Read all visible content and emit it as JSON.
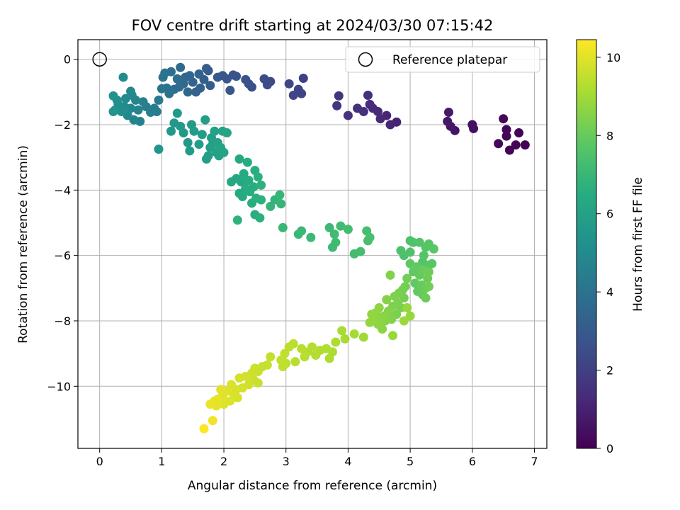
{
  "chart_data": {
    "type": "scatter",
    "title": "FOV centre drift starting at 2024/03/30 07:15:42",
    "xlabel": "Angular distance from reference (arcmin)",
    "ylabel": "Rotation from reference (arcmin)",
    "xlim": [
      -0.35,
      7.2
    ],
    "ylim": [
      -11.9,
      0.6
    ],
    "xticks": [
      0,
      1,
      2,
      3,
      4,
      5,
      6,
      7
    ],
    "yticks": [
      0,
      -2,
      -4,
      -6,
      -8,
      -10
    ],
    "grid": true,
    "legend": {
      "label": "Reference platepar",
      "placement": "top-right"
    },
    "reference_point": {
      "x": 0,
      "y": 0
    },
    "colorbar": {
      "label": "Hours from first FF file",
      "colormap": "viridis",
      "min": 0,
      "max": 10.45,
      "ticks": [
        0,
        2,
        4,
        6,
        8,
        10
      ]
    },
    "colors": {
      "marker_edge": "#000000",
      "grid": "#b0b0b0"
    },
    "points": [
      {
        "x": 6.85,
        "y": -2.62,
        "t": 0.05
      },
      {
        "x": 6.75,
        "y": -2.25,
        "t": 0.08
      },
      {
        "x": 6.7,
        "y": -2.62,
        "t": 0.1
      },
      {
        "x": 6.6,
        "y": -2.78,
        "t": 0.12
      },
      {
        "x": 6.55,
        "y": -2.35,
        "t": 0.14
      },
      {
        "x": 6.55,
        "y": -2.15,
        "t": 0.16
      },
      {
        "x": 6.5,
        "y": -1.82,
        "t": 0.18
      },
      {
        "x": 6.42,
        "y": -2.58,
        "t": 0.2
      },
      {
        "x": 6.02,
        "y": -2.12,
        "t": 0.45
      },
      {
        "x": 6.0,
        "y": -2.0,
        "t": 0.5
      },
      {
        "x": 5.72,
        "y": -2.18,
        "t": 0.6
      },
      {
        "x": 5.65,
        "y": -2.05,
        "t": 0.65
      },
      {
        "x": 5.6,
        "y": -1.9,
        "t": 0.7
      },
      {
        "x": 5.62,
        "y": -1.62,
        "t": 0.75
      },
      {
        "x": 4.78,
        "y": -1.92,
        "t": 1.05
      },
      {
        "x": 4.68,
        "y": -2.0,
        "t": 1.1
      },
      {
        "x": 4.62,
        "y": -1.72,
        "t": 1.15
      },
      {
        "x": 4.52,
        "y": -1.82,
        "t": 1.2
      },
      {
        "x": 4.48,
        "y": -1.6,
        "t": 1.25
      },
      {
        "x": 4.4,
        "y": -1.5,
        "t": 1.3
      },
      {
        "x": 4.35,
        "y": -1.38,
        "t": 1.35
      },
      {
        "x": 4.32,
        "y": -1.1,
        "t": 1.4
      },
      {
        "x": 4.25,
        "y": -1.6,
        "t": 1.45
      },
      {
        "x": 4.15,
        "y": -1.5,
        "t": 1.5
      },
      {
        "x": 4.0,
        "y": -1.72,
        "t": 1.55
      },
      {
        "x": 3.85,
        "y": -1.12,
        "t": 1.6
      },
      {
        "x": 3.82,
        "y": -1.42,
        "t": 1.65
      },
      {
        "x": 3.28,
        "y": -0.58,
        "t": 2.05
      },
      {
        "x": 3.25,
        "y": -1.05,
        "t": 2.1
      },
      {
        "x": 3.2,
        "y": -0.92,
        "t": 2.15
      },
      {
        "x": 3.12,
        "y": -1.1,
        "t": 2.2
      },
      {
        "x": 3.05,
        "y": -0.75,
        "t": 2.25
      },
      {
        "x": 2.75,
        "y": -0.68,
        "t": 2.35
      },
      {
        "x": 2.7,
        "y": -0.78,
        "t": 2.4
      },
      {
        "x": 2.65,
        "y": -0.6,
        "t": 2.45
      },
      {
        "x": 2.45,
        "y": -0.85,
        "t": 2.55
      },
      {
        "x": 2.4,
        "y": -0.75,
        "t": 2.6
      },
      {
        "x": 2.35,
        "y": -0.62,
        "t": 2.65
      },
      {
        "x": 2.2,
        "y": -0.52,
        "t": 2.7
      },
      {
        "x": 2.15,
        "y": -0.48,
        "t": 2.75
      },
      {
        "x": 2.1,
        "y": -0.95,
        "t": 2.8
      },
      {
        "x": 2.05,
        "y": -0.6,
        "t": 2.85
      },
      {
        "x": 1.98,
        "y": -0.5,
        "t": 2.9
      },
      {
        "x": 1.9,
        "y": -0.55,
        "t": 2.95
      },
      {
        "x": 1.78,
        "y": -0.8,
        "t": 3.05
      },
      {
        "x": 1.75,
        "y": -0.35,
        "t": 3.1
      },
      {
        "x": 1.72,
        "y": -0.28,
        "t": 3.15
      },
      {
        "x": 1.68,
        "y": -0.62,
        "t": 3.2
      },
      {
        "x": 1.62,
        "y": -0.88,
        "t": 3.25
      },
      {
        "x": 1.6,
        "y": -0.45,
        "t": 3.3
      },
      {
        "x": 1.55,
        "y": -1.0,
        "t": 3.35
      },
      {
        "x": 1.5,
        "y": -0.7,
        "t": 3.4
      },
      {
        "x": 1.45,
        "y": -0.5,
        "t": 3.45
      },
      {
        "x": 1.42,
        "y": -1.0,
        "t": 3.5
      },
      {
        "x": 1.38,
        "y": -0.55,
        "t": 3.55
      },
      {
        "x": 1.35,
        "y": -0.75,
        "t": 3.6
      },
      {
        "x": 1.3,
        "y": -0.25,
        "t": 3.65
      },
      {
        "x": 1.28,
        "y": -0.85,
        "t": 3.7
      },
      {
        "x": 1.25,
        "y": -0.6,
        "t": 3.75
      },
      {
        "x": 1.2,
        "y": -0.92,
        "t": 3.8
      },
      {
        "x": 1.15,
        "y": -0.38,
        "t": 3.85
      },
      {
        "x": 1.12,
        "y": -1.05,
        "t": 3.9
      },
      {
        "x": 1.08,
        "y": -0.88,
        "t": 3.95
      },
      {
        "x": 1.05,
        "y": -0.42,
        "t": 4.0
      },
      {
        "x": 1.02,
        "y": -0.55,
        "t": 4.05
      },
      {
        "x": 1.0,
        "y": -0.9,
        "t": 4.1
      },
      {
        "x": 0.95,
        "y": -1.25,
        "t": 4.3
      },
      {
        "x": 0.92,
        "y": -1.6,
        "t": 4.35
      },
      {
        "x": 0.88,
        "y": -1.5,
        "t": 4.4
      },
      {
        "x": 0.82,
        "y": -1.62,
        "t": 4.45
      },
      {
        "x": 0.75,
        "y": -1.45,
        "t": 4.5
      },
      {
        "x": 0.7,
        "y": -1.3,
        "t": 4.55
      },
      {
        "x": 0.65,
        "y": -1.9,
        "t": 4.6
      },
      {
        "x": 0.62,
        "y": -1.55,
        "t": 4.65
      },
      {
        "x": 0.58,
        "y": -1.25,
        "t": 4.7
      },
      {
        "x": 0.55,
        "y": -1.85,
        "t": 4.75
      },
      {
        "x": 0.52,
        "y": -1.1,
        "t": 4.8
      },
      {
        "x": 0.5,
        "y": -1.5,
        "t": 4.85
      },
      {
        "x": 0.5,
        "y": -0.98,
        "t": 4.9
      },
      {
        "x": 0.45,
        "y": -1.72,
        "t": 4.95
      },
      {
        "x": 0.42,
        "y": -1.2,
        "t": 5.0
      },
      {
        "x": 0.4,
        "y": -1.45,
        "t": 5.05
      },
      {
        "x": 0.38,
        "y": -0.55,
        "t": 5.1
      },
      {
        "x": 0.35,
        "y": -1.6,
        "t": 5.15
      },
      {
        "x": 0.3,
        "y": -1.38,
        "t": 5.2
      },
      {
        "x": 0.28,
        "y": -1.25,
        "t": 5.25
      },
      {
        "x": 0.25,
        "y": -1.55,
        "t": 5.3
      },
      {
        "x": 0.22,
        "y": -1.12,
        "t": 5.35
      },
      {
        "x": 0.22,
        "y": -1.6,
        "t": 5.4
      },
      {
        "x": 0.95,
        "y": -2.75,
        "t": 5.5
      },
      {
        "x": 1.15,
        "y": -2.2,
        "t": 5.55
      },
      {
        "x": 1.2,
        "y": -1.95,
        "t": 5.58
      },
      {
        "x": 1.25,
        "y": -1.65,
        "t": 5.6
      },
      {
        "x": 1.3,
        "y": -2.05,
        "t": 5.62
      },
      {
        "x": 1.35,
        "y": -2.25,
        "t": 5.65
      },
      {
        "x": 1.42,
        "y": -2.55,
        "t": 5.68
      },
      {
        "x": 1.45,
        "y": -2.8,
        "t": 5.7
      },
      {
        "x": 1.48,
        "y": -2.0,
        "t": 5.72
      },
      {
        "x": 1.52,
        "y": -2.2,
        "t": 5.75
      },
      {
        "x": 1.6,
        "y": -2.6,
        "t": 5.78
      },
      {
        "x": 1.65,
        "y": -2.3,
        "t": 5.8
      },
      {
        "x": 1.7,
        "y": -1.85,
        "t": 5.82
      },
      {
        "x": 1.72,
        "y": -3.05,
        "t": 5.85
      },
      {
        "x": 1.75,
        "y": -2.95,
        "t": 5.88
      },
      {
        "x": 1.78,
        "y": -2.7,
        "t": 5.9
      },
      {
        "x": 1.8,
        "y": -2.4,
        "t": 5.92
      },
      {
        "x": 1.82,
        "y": -2.6,
        "t": 5.95
      },
      {
        "x": 1.85,
        "y": -2.2,
        "t": 5.98
      },
      {
        "x": 1.88,
        "y": -2.85,
        "t": 6.0
      },
      {
        "x": 1.9,
        "y": -2.55,
        "t": 6.02
      },
      {
        "x": 1.92,
        "y": -2.95,
        "t": 6.05
      },
      {
        "x": 1.95,
        "y": -2.7,
        "t": 6.08
      },
      {
        "x": 1.98,
        "y": -2.2,
        "t": 6.1
      },
      {
        "x": 2.0,
        "y": -2.85,
        "t": 6.12
      },
      {
        "x": 2.05,
        "y": -2.25,
        "t": 6.15
      },
      {
        "x": 2.12,
        "y": -3.75,
        "t": 6.25
      },
      {
        "x": 2.2,
        "y": -3.65,
        "t": 6.28
      },
      {
        "x": 2.25,
        "y": -4.1,
        "t": 6.3
      },
      {
        "x": 2.25,
        "y": -3.05,
        "t": 6.32
      },
      {
        "x": 2.28,
        "y": -3.75,
        "t": 6.35
      },
      {
        "x": 2.3,
        "y": -4.2,
        "t": 6.38
      },
      {
        "x": 2.32,
        "y": -3.5,
        "t": 6.4
      },
      {
        "x": 2.35,
        "y": -3.95,
        "t": 6.42
      },
      {
        "x": 2.38,
        "y": -3.15,
        "t": 6.45
      },
      {
        "x": 2.4,
        "y": -3.7,
        "t": 6.48
      },
      {
        "x": 2.42,
        "y": -4.05,
        "t": 6.5
      },
      {
        "x": 2.45,
        "y": -4.4,
        "t": 6.52
      },
      {
        "x": 2.48,
        "y": -3.9,
        "t": 6.55
      },
      {
        "x": 2.5,
        "y": -3.4,
        "t": 6.58
      },
      {
        "x": 2.5,
        "y": -4.75,
        "t": 6.6
      },
      {
        "x": 2.52,
        "y": -4.25,
        "t": 6.62
      },
      {
        "x": 2.55,
        "y": -3.6,
        "t": 6.65
      },
      {
        "x": 2.58,
        "y": -4.85,
        "t": 6.68
      },
      {
        "x": 2.6,
        "y": -4.3,
        "t": 6.7
      },
      {
        "x": 2.6,
        "y": -3.85,
        "t": 6.72
      },
      {
        "x": 2.22,
        "y": -4.92,
        "t": 6.75
      },
      {
        "x": 2.75,
        "y": -4.5,
        "t": 6.85
      },
      {
        "x": 2.82,
        "y": -4.3,
        "t": 6.88
      },
      {
        "x": 2.9,
        "y": -4.15,
        "t": 6.9
      },
      {
        "x": 2.92,
        "y": -4.42,
        "t": 6.92
      },
      {
        "x": 2.95,
        "y": -5.15,
        "t": 6.95
      },
      {
        "x": 3.2,
        "y": -5.35,
        "t": 7.0
      },
      {
        "x": 3.25,
        "y": -5.25,
        "t": 7.02
      },
      {
        "x": 3.4,
        "y": -5.45,
        "t": 7.05
      },
      {
        "x": 3.7,
        "y": -5.15,
        "t": 7.1
      },
      {
        "x": 3.75,
        "y": -5.75,
        "t": 7.12
      },
      {
        "x": 3.8,
        "y": -5.6,
        "t": 7.15
      },
      {
        "x": 3.78,
        "y": -5.35,
        "t": 7.18
      },
      {
        "x": 3.88,
        "y": -5.1,
        "t": 7.2
      },
      {
        "x": 4.0,
        "y": -5.2,
        "t": 7.22
      },
      {
        "x": 4.1,
        "y": -5.95,
        "t": 7.25
      },
      {
        "x": 4.2,
        "y": -5.88,
        "t": 7.28
      },
      {
        "x": 4.3,
        "y": -5.25,
        "t": 7.3
      },
      {
        "x": 4.32,
        "y": -5.55,
        "t": 7.32
      },
      {
        "x": 4.35,
        "y": -5.45,
        "t": 7.35
      },
      {
        "x": 4.85,
        "y": -5.85,
        "t": 7.45
      },
      {
        "x": 4.9,
        "y": -6.0,
        "t": 7.48
      },
      {
        "x": 5.0,
        "y": -5.55,
        "t": 7.5
      },
      {
        "x": 5.0,
        "y": -5.9,
        "t": 7.52
      },
      {
        "x": 5.05,
        "y": -5.6,
        "t": 7.55
      },
      {
        "x": 5.15,
        "y": -5.6,
        "t": 7.58
      },
      {
        "x": 5.2,
        "y": -6.2,
        "t": 7.6
      },
      {
        "x": 5.22,
        "y": -6.0,
        "t": 7.62
      },
      {
        "x": 5.25,
        "y": -5.75,
        "t": 7.65
      },
      {
        "x": 5.28,
        "y": -6.3,
        "t": 7.68
      },
      {
        "x": 5.3,
        "y": -5.65,
        "t": 7.7
      },
      {
        "x": 5.35,
        "y": -6.25,
        "t": 7.72
      },
      {
        "x": 5.38,
        "y": -5.8,
        "t": 7.75
      },
      {
        "x": 5.0,
        "y": -6.25,
        "t": 7.85
      },
      {
        "x": 5.05,
        "y": -6.5,
        "t": 7.88
      },
      {
        "x": 5.08,
        "y": -6.85,
        "t": 7.9
      },
      {
        "x": 5.1,
        "y": -6.35,
        "t": 7.92
      },
      {
        "x": 5.12,
        "y": -7.1,
        "t": 7.95
      },
      {
        "x": 5.15,
        "y": -6.6,
        "t": 7.98
      },
      {
        "x": 5.18,
        "y": -6.9,
        "t": 8.0
      },
      {
        "x": 5.2,
        "y": -7.2,
        "t": 8.02
      },
      {
        "x": 5.22,
        "y": -6.45,
        "t": 8.05
      },
      {
        "x": 5.25,
        "y": -7.0,
        "t": 8.08
      },
      {
        "x": 5.25,
        "y": -7.3,
        "t": 8.1
      },
      {
        "x": 5.28,
        "y": -6.7,
        "t": 8.12
      },
      {
        "x": 5.3,
        "y": -6.5,
        "t": 8.15
      },
      {
        "x": 5.3,
        "y": -6.95,
        "t": 8.18
      },
      {
        "x": 4.95,
        "y": -6.7,
        "t": 8.2
      },
      {
        "x": 4.92,
        "y": -6.95,
        "t": 8.22
      },
      {
        "x": 4.9,
        "y": -7.3,
        "t": 8.25
      },
      {
        "x": 4.88,
        "y": -7.05,
        "t": 8.28
      },
      {
        "x": 4.85,
        "y": -7.6,
        "t": 8.3
      },
      {
        "x": 4.82,
        "y": -7.15,
        "t": 8.32
      },
      {
        "x": 4.8,
        "y": -7.45,
        "t": 8.35
      },
      {
        "x": 4.78,
        "y": -7.8,
        "t": 8.38
      },
      {
        "x": 4.75,
        "y": -7.25,
        "t": 8.4
      },
      {
        "x": 4.72,
        "y": -7.55,
        "t": 8.42
      },
      {
        "x": 4.7,
        "y": -7.95,
        "t": 8.45
      },
      {
        "x": 4.68,
        "y": -6.6,
        "t": 8.48
      },
      {
        "x": 4.65,
        "y": -7.7,
        "t": 8.5
      },
      {
        "x": 4.62,
        "y": -7.35,
        "t": 8.52
      },
      {
        "x": 4.6,
        "y": -8.0,
        "t": 8.55
      },
      {
        "x": 4.58,
        "y": -7.85,
        "t": 8.58
      },
      {
        "x": 4.55,
        "y": -8.25,
        "t": 8.6
      },
      {
        "x": 4.52,
        "y": -7.95,
        "t": 8.62
      },
      {
        "x": 4.5,
        "y": -7.6,
        "t": 8.65
      },
      {
        "x": 4.48,
        "y": -8.1,
        "t": 8.68
      },
      {
        "x": 4.45,
        "y": -7.75,
        "t": 8.7
      },
      {
        "x": 4.42,
        "y": -8.0,
        "t": 8.72
      },
      {
        "x": 4.38,
        "y": -7.8,
        "t": 8.75
      },
      {
        "x": 4.35,
        "y": -8.05,
        "t": 8.78
      },
      {
        "x": 4.95,
        "y": -7.6,
        "t": 8.8
      },
      {
        "x": 5.0,
        "y": -7.85,
        "t": 8.82
      },
      {
        "x": 4.72,
        "y": -8.45,
        "t": 8.85
      },
      {
        "x": 4.9,
        "y": -8.0,
        "t": 8.88
      },
      {
        "x": 4.25,
        "y": -8.5,
        "t": 9.0
      },
      {
        "x": 4.1,
        "y": -8.4,
        "t": 9.05
      },
      {
        "x": 3.95,
        "y": -8.55,
        "t": 9.1
      },
      {
        "x": 3.9,
        "y": -8.3,
        "t": 9.12
      },
      {
        "x": 3.8,
        "y": -8.65,
        "t": 9.15
      },
      {
        "x": 3.75,
        "y": -8.95,
        "t": 9.18
      },
      {
        "x": 3.7,
        "y": -9.15,
        "t": 9.2
      },
      {
        "x": 3.65,
        "y": -8.85,
        "t": 9.22
      },
      {
        "x": 3.55,
        "y": -8.9,
        "t": 9.25
      },
      {
        "x": 3.48,
        "y": -9.05,
        "t": 9.28
      },
      {
        "x": 3.42,
        "y": -8.8,
        "t": 9.3
      },
      {
        "x": 3.35,
        "y": -8.95,
        "t": 9.32
      },
      {
        "x": 3.3,
        "y": -9.1,
        "t": 9.35
      },
      {
        "x": 3.25,
        "y": -8.85,
        "t": 9.38
      },
      {
        "x": 3.12,
        "y": -8.7,
        "t": 9.4
      },
      {
        "x": 3.05,
        "y": -8.8,
        "t": 9.42
      },
      {
        "x": 3.0,
        "y": -9.3,
        "t": 9.45
      },
      {
        "x": 2.98,
        "y": -9.0,
        "t": 9.48
      },
      {
        "x": 2.95,
        "y": -9.4,
        "t": 9.5
      },
      {
        "x": 2.92,
        "y": -9.2,
        "t": 9.52
      },
      {
        "x": 2.75,
        "y": -9.1,
        "t": 9.55
      },
      {
        "x": 2.62,
        "y": -9.4,
        "t": 9.6
      },
      {
        "x": 2.55,
        "y": -9.55,
        "t": 9.62
      },
      {
        "x": 2.5,
        "y": -9.45,
        "t": 9.65
      },
      {
        "x": 2.48,
        "y": -9.8,
        "t": 9.68
      },
      {
        "x": 2.45,
        "y": -9.6,
        "t": 9.7
      },
      {
        "x": 2.4,
        "y": -9.95,
        "t": 9.72
      },
      {
        "x": 2.35,
        "y": -9.7,
        "t": 9.75
      },
      {
        "x": 2.3,
        "y": -10.05,
        "t": 9.78
      },
      {
        "x": 2.25,
        "y": -9.75,
        "t": 9.8
      },
      {
        "x": 2.22,
        "y": -10.35,
        "t": 9.82
      },
      {
        "x": 2.2,
        "y": -10.1,
        "t": 9.85
      },
      {
        "x": 2.15,
        "y": -10.2,
        "t": 9.88
      },
      {
        "x": 2.12,
        "y": -9.95,
        "t": 9.9
      },
      {
        "x": 2.1,
        "y": -10.45,
        "t": 9.92
      },
      {
        "x": 2.05,
        "y": -10.15,
        "t": 9.95
      },
      {
        "x": 2.0,
        "y": -10.55,
        "t": 9.98
      },
      {
        "x": 1.98,
        "y": -10.3,
        "t": 10.0
      },
      {
        "x": 1.95,
        "y": -10.1,
        "t": 10.02
      },
      {
        "x": 1.9,
        "y": -10.4,
        "t": 10.05
      },
      {
        "x": 1.88,
        "y": -10.6,
        "t": 10.08
      },
      {
        "x": 1.85,
        "y": -10.45,
        "t": 10.1
      },
      {
        "x": 1.78,
        "y": -10.55,
        "t": 10.15
      },
      {
        "x": 1.82,
        "y": -11.05,
        "t": 10.25
      },
      {
        "x": 1.68,
        "y": -11.3,
        "t": 10.4
      },
      {
        "x": 2.55,
        "y": -9.9,
        "t": 9.58
      },
      {
        "x": 2.7,
        "y": -9.35,
        "t": 9.57
      },
      {
        "x": 3.15,
        "y": -9.25,
        "t": 9.38
      }
    ]
  }
}
